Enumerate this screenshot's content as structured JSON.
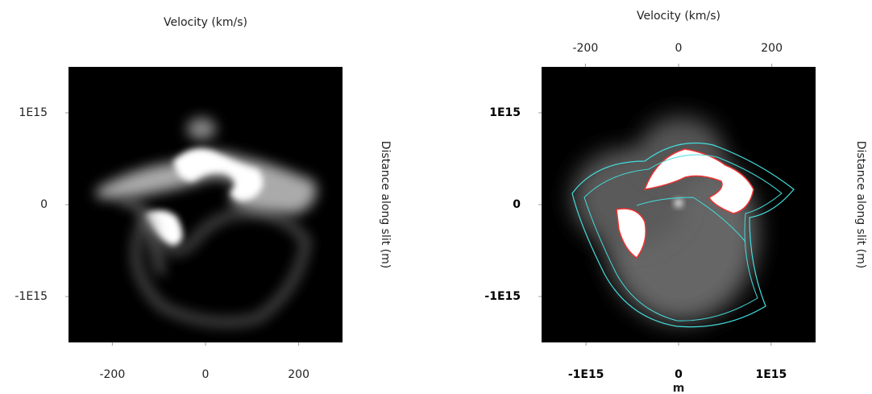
{
  "chart_data": [
    {
      "type": "image",
      "x2_label": "Velocity (km/s)",
      "y2_label": "Distance along slit (m)",
      "xlim": [
        -294,
        294
      ],
      "xticks": [
        -200,
        0,
        200
      ],
      "ylim": [
        -1500000000000000.0,
        1500000000000000.0
      ],
      "yticks": [
        {
          "value": 1000000000000000.0,
          "label": "1E15"
        },
        0,
        {
          "value": -1000000000000000.0,
          "label": "-1E15"
        }
      ]
    },
    {
      "type": "image",
      "x2_label": "Velocity (km/s)",
      "y2_label": "Distance along slit (m)",
      "x_label": "m",
      "x2lim": [
        -294,
        294
      ],
      "x2ticks": [
        -200,
        0,
        200
      ],
      "xlim": [
        -1480000000000000.0,
        1480000000000000.0
      ],
      "xticks": [
        {
          "value": -1000000000000000.0,
          "label": "-1E15"
        },
        0,
        {
          "value": 1000000000000000.0,
          "label": "1E15"
        }
      ],
      "ylim": [
        -1500000000000000.0,
        1500000000000000.0
      ],
      "yticks": [
        {
          "value": 1000000000000000.0,
          "label": "1E15"
        },
        0,
        {
          "value": -1000000000000000.0,
          "label": "-1E15"
        }
      ]
    }
  ]
}
